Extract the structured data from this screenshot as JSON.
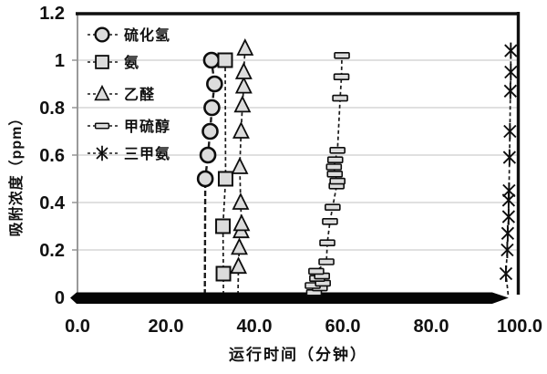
{
  "chart_data": {
    "type": "scatter",
    "title": "",
    "xlabel": "运行时间（分钟）",
    "ylabel": "吸附浓度（ppm）",
    "xlim": [
      0,
      100
    ],
    "ylim": [
      0,
      1.2
    ],
    "xticks": {
      "values": [
        0,
        20,
        40,
        60,
        80,
        100
      ],
      "labels": [
        "0.0",
        "20.0",
        "40.0",
        "60.0",
        "80.0",
        "100.0"
      ]
    },
    "yticks": {
      "values": [
        0,
        0.2,
        0.4,
        0.6,
        0.8,
        1.0,
        1.2
      ],
      "labels": [
        "0",
        "0.2",
        "0.4",
        "0.6",
        "0.8",
        "1",
        "1.2"
      ]
    },
    "grid_values": [
      0.2,
      0.4,
      0.6,
      0.8,
      1.0
    ],
    "grid_on": true,
    "legend_position": "upper-left-inside",
    "zero_band": {
      "y": 0,
      "x_start": 0,
      "x_end": 97.5
    },
    "series": [
      {
        "name": "硫化氢",
        "marker": "circle",
        "line": "dashed",
        "drop_x": 28.8,
        "points": [
          [
            28.9,
            0.5
          ],
          [
            29.5,
            0.6
          ],
          [
            30.0,
            0.7
          ],
          [
            30.4,
            0.8
          ],
          [
            31.0,
            0.9
          ],
          [
            30.3,
            1.0
          ]
        ]
      },
      {
        "name": "氨",
        "marker": "square",
        "line": "dashed",
        "drop_x": 33.0,
        "points": [
          [
            33.0,
            0.1
          ],
          [
            32.9,
            0.3
          ],
          [
            33.5,
            0.5
          ],
          [
            33.4,
            1.0
          ]
        ]
      },
      {
        "name": "乙醛",
        "marker": "triangle",
        "line": "dashed",
        "drop_x": 36.3,
        "points": [
          [
            36.4,
            0.13
          ],
          [
            36.6,
            0.21
          ],
          [
            37.0,
            0.28
          ],
          [
            37.1,
            0.31
          ],
          [
            36.9,
            0.4
          ],
          [
            36.7,
            0.55
          ],
          [
            37.0,
            0.7
          ],
          [
            37.3,
            0.81
          ],
          [
            37.6,
            0.89
          ],
          [
            37.6,
            0.95
          ],
          [
            37.9,
            1.05
          ]
        ]
      },
      {
        "name": "甲硫醇",
        "marker": "hbar",
        "line": "dashed",
        "drop_x": 53.3,
        "points": [
          [
            53.5,
            0.02
          ],
          [
            54.8,
            0.04
          ],
          [
            53.2,
            0.05
          ],
          [
            55.5,
            0.06
          ],
          [
            54.2,
            0.08
          ],
          [
            55.3,
            0.09
          ],
          [
            54.0,
            0.11
          ],
          [
            56.3,
            0.15
          ],
          [
            56.5,
            0.23
          ],
          [
            57.1,
            0.32
          ],
          [
            57.7,
            0.38
          ],
          [
            58.6,
            0.47
          ],
          [
            58.8,
            0.49
          ],
          [
            58.2,
            0.52
          ],
          [
            58.0,
            0.55
          ],
          [
            58.3,
            0.58
          ],
          [
            58.8,
            0.62
          ],
          [
            59.4,
            0.84
          ],
          [
            59.7,
            0.93
          ],
          [
            59.8,
            1.02
          ]
        ]
      },
      {
        "name": "三甲氨",
        "marker": "asterisk",
        "line": "dashed",
        "drop_x": 97.4,
        "points": [
          [
            96.9,
            0.1
          ],
          [
            97.2,
            0.2
          ],
          [
            97.3,
            0.27
          ],
          [
            97.5,
            0.34
          ],
          [
            97.5,
            0.41
          ],
          [
            97.6,
            0.45
          ],
          [
            97.7,
            0.59
          ],
          [
            97.8,
            0.7
          ],
          [
            97.9,
            0.87
          ],
          [
            98.0,
            0.95
          ],
          [
            98.0,
            1.04
          ]
        ]
      }
    ],
    "colors": {
      "frame": "#0f0f0f",
      "left_axis": "#8f8f8f",
      "grid": "#d6d6d6",
      "line": "#1a1a1a",
      "marker_fill": "#dcdcdc",
      "marker_stroke": "#0d0d0d",
      "band": "#050505",
      "text": "#111111"
    }
  }
}
